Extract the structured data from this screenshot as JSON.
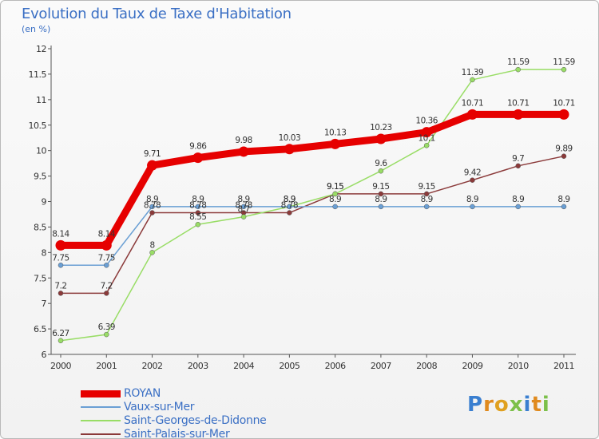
{
  "chart_data": {
    "type": "line",
    "title": "Evolution du Taux de Taxe d'Habitation",
    "unit": "(en %)",
    "xlabel": "",
    "ylabel": "",
    "x": [
      "2000",
      "2001",
      "2002",
      "2003",
      "2004",
      "2005",
      "2006",
      "2007",
      "2008",
      "2009",
      "2010",
      "2011"
    ],
    "ylim": [
      6,
      12
    ],
    "yticks": [
      "6",
      "6.5",
      "7",
      "7.5",
      "8",
      "8.5",
      "9",
      "9.5",
      "10",
      "10.5",
      "11",
      "11.5",
      "12"
    ],
    "grid": false,
    "legend_position": "bottom-left",
    "series": [
      {
        "name": "ROYAN",
        "color": "#e60000",
        "values": [
          8.14,
          8.14,
          9.71,
          9.86,
          9.98,
          10.03,
          10.13,
          10.23,
          10.36,
          10.71,
          10.71,
          10.71
        ],
        "labels": [
          "8.14",
          "8.14",
          "9.71",
          "9.86",
          "9.98",
          "10.03",
          "10.13",
          "10.23",
          "10.36",
          "10.71",
          "10.71",
          "10.71"
        ]
      },
      {
        "name": "Vaux-sur-Mer",
        "color": "#6a9fd4",
        "values": [
          7.75,
          7.75,
          8.9,
          8.9,
          8.9,
          8.9,
          8.9,
          8.9,
          8.9,
          8.9,
          8.9,
          8.9
        ],
        "labels": [
          "7.75",
          "7.75",
          "8.9",
          "8.9",
          "8.9",
          "8.9",
          "8.9",
          "8.9",
          "8.9",
          "8.9",
          "8.9",
          "8.9"
        ]
      },
      {
        "name": "Saint-Georges-de-Didonne",
        "color": "#99dd66",
        "values": [
          6.27,
          6.39,
          8,
          8.55,
          8.7,
          8.9,
          9.15,
          9.6,
          10.1,
          11.39,
          11.59,
          11.59
        ],
        "labels": [
          "6.27",
          "6.39",
          "8",
          "8.55",
          "8.7",
          "8.9",
          "9.15",
          "9.6",
          "10.1",
          "11.39",
          "11.59",
          "11.59"
        ]
      },
      {
        "name": "Saint-Palais-sur-Mer",
        "color": "#8b3a3a",
        "values": [
          7.2,
          7.2,
          8.78,
          8.78,
          8.78,
          8.78,
          9.15,
          9.15,
          9.15,
          9.42,
          9.7,
          9.89
        ],
        "labels": [
          "7.2",
          "7.2",
          "8.78",
          "8.78",
          "8.78",
          "8.78",
          "9.15",
          "9.15",
          "9.15",
          "9.42",
          "9.7",
          "9.89"
        ]
      }
    ]
  },
  "logo": {
    "text": "Proxiti"
  }
}
